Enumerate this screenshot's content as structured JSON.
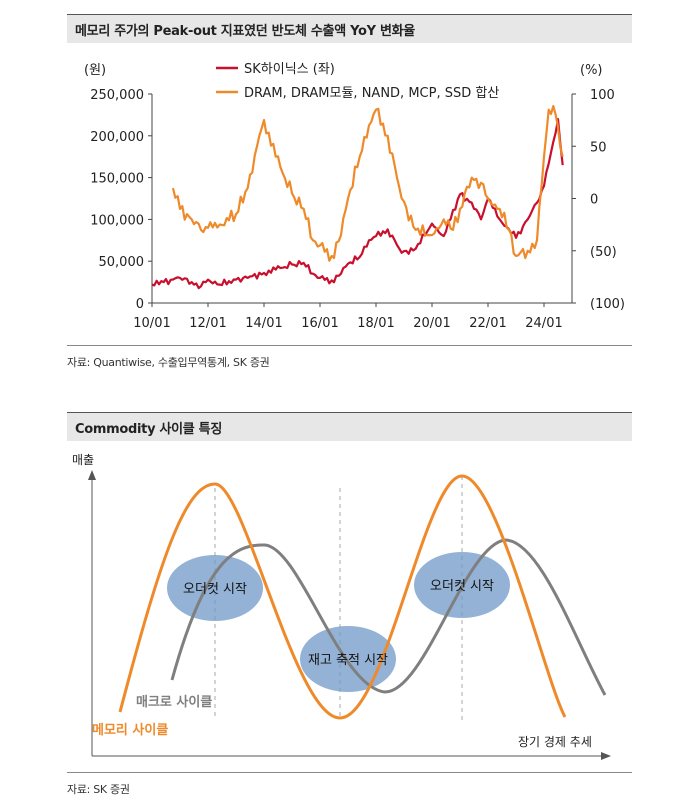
{
  "panel1": {
    "title": "메모리 주가의 Peak-out 지표였던 반도체 수출액 YoY 변화율",
    "source": "자료: Quantiwise, 수출입무역통계, SK 증권"
  },
  "panel2": {
    "title": "Commodity 사이클 특징",
    "source": "자료: SK 증권"
  },
  "chart_data": [
    {
      "type": "line",
      "left_unit": "(원)",
      "right_unit": "(%)",
      "left_ylim": [
        0,
        250000
      ],
      "right_ylim": [
        -100,
        100
      ],
      "left_ticks": [
        "250,000",
        "200,000",
        "150,000",
        "100,000",
        "50,000",
        "0"
      ],
      "right_ticks": [
        "100",
        "50",
        "0",
        "(50)",
        "(100)"
      ],
      "x_ticks": [
        "10/01",
        "12/01",
        "14/01",
        "16/01",
        "18/01",
        "20/01",
        "22/01",
        "24/01"
      ],
      "legend": {
        "position": "top",
        "entries": [
          {
            "label": "SK하이닉스 (좌)",
            "color": "#c8102e"
          },
          {
            "label": "DRAM, DRAM모듈, NAND, MCP, SSD 합산",
            "color": "#ef8a2b"
          }
        ]
      },
      "series": [
        {
          "name": "SK하이닉스 (좌)",
          "axis": "left",
          "color": "#c8102e",
          "x": [
            "2010-01",
            "2010-06",
            "2011-01",
            "2011-06",
            "2011-10",
            "2012-01",
            "2012-06",
            "2013-01",
            "2013-06",
            "2014-01",
            "2014-06",
            "2015-01",
            "2015-06",
            "2015-10",
            "2016-01",
            "2016-06",
            "2016-10",
            "2017-01",
            "2017-06",
            "2017-10",
            "2018-01",
            "2018-06",
            "2018-12",
            "2019-06",
            "2020-01",
            "2020-06",
            "2021-01",
            "2021-06",
            "2021-10",
            "2022-01",
            "2022-06",
            "2022-10",
            "2023-01",
            "2023-06",
            "2023-10",
            "2024-01",
            "2024-04",
            "2024-07",
            "2024-09"
          ],
          "y": [
            22000,
            25000,
            30000,
            25000,
            20000,
            28000,
            22000,
            28000,
            30000,
            36000,
            40000,
            46000,
            48000,
            35000,
            30000,
            27000,
            35000,
            47000,
            55000,
            75000,
            80000,
            88000,
            60000,
            65000,
            95000,
            80000,
            130000,
            120000,
            100000,
            125000,
            100000,
            88000,
            78000,
            100000,
            120000,
            140000,
            180000,
            220000,
            165000
          ]
        },
        {
          "name": "DRAM, DRAM모듈, NAND, MCP, SSD 합산",
          "axis": "right",
          "color": "#ef8a2b",
          "x": [
            "2010-10",
            "2011-01",
            "2011-06",
            "2011-10",
            "2012-01",
            "2012-06",
            "2013-01",
            "2013-06",
            "2013-10",
            "2014-01",
            "2014-06",
            "2015-01",
            "2015-06",
            "2015-10",
            "2016-01",
            "2016-06",
            "2016-10",
            "2017-01",
            "2017-06",
            "2017-10",
            "2018-01",
            "2018-06",
            "2018-12",
            "2019-06",
            "2020-01",
            "2020-06",
            "2020-10",
            "2021-01",
            "2021-06",
            "2021-10",
            "2022-01",
            "2022-06",
            "2022-10",
            "2023-01",
            "2023-06",
            "2023-10",
            "2024-01",
            "2024-03",
            "2024-06",
            "2024-09"
          ],
          "y": [
            10,
            -10,
            -20,
            -30,
            -28,
            -25,
            -15,
            10,
            50,
            75,
            40,
            5,
            -10,
            -40,
            -45,
            -55,
            -35,
            0,
            40,
            70,
            85,
            60,
            0,
            -30,
            -35,
            -20,
            -30,
            -10,
            20,
            15,
            0,
            -10,
            -30,
            -55,
            -50,
            -40,
            40,
            85,
            80,
            40
          ]
        }
      ]
    },
    {
      "type": "line",
      "xlabel": "장기 경제 추세",
      "ylabel": "매출",
      "series": [
        {
          "name": "메모리 사이클",
          "color": "#ef8a2b"
        },
        {
          "name": "매크로 사이클",
          "color": "#7f7f7f"
        }
      ],
      "annotations": [
        "오더컷 시작",
        "재고 축적 시작",
        "오더컷 시작"
      ]
    }
  ]
}
